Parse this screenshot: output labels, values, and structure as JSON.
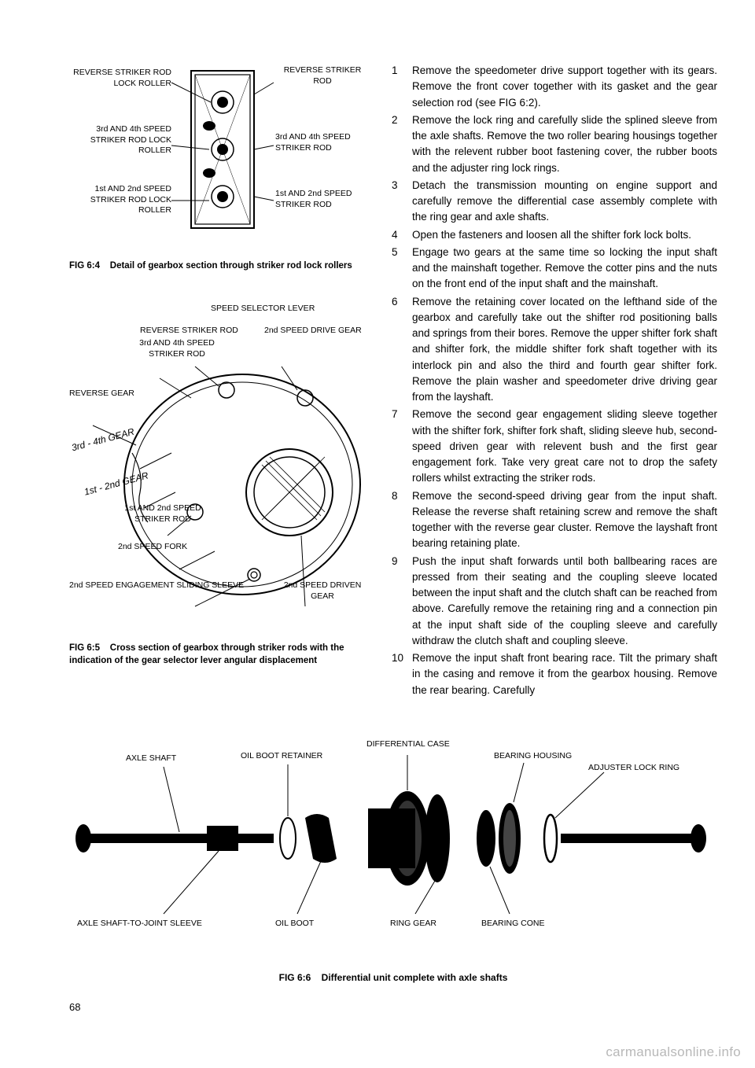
{
  "page_number": "68",
  "watermark": "carmanualsonline.info",
  "fig4": {
    "caption_num": "FIG 6:4",
    "caption_text": "Detail of gearbox section through striker rod lock rollers",
    "labels": {
      "l1": "REVERSE STRIKER ROD LOCK ROLLER",
      "l2": "3rd AND 4th SPEED STRIKER ROD LOCK ROLLER",
      "l3": "1st AND 2nd SPEED STRIKER ROD LOCK ROLLER",
      "r1": "REVERSE STRIKER ROD",
      "r2": "3rd AND 4th SPEED STRIKER ROD",
      "r3": "1st AND 2nd SPEED STRIKER ROD"
    }
  },
  "fig5": {
    "caption_num": "FIG 6:5",
    "caption_text": "Cross section of gearbox through striker rods with the indication of the gear selector lever angular displacement",
    "labels": {
      "top1": "SPEED SELECTOR LEVER",
      "top2": "REVERSE STRIKER ROD",
      "top3": "2nd SPEED DRIVE GEAR",
      "top4": "3rd AND 4th SPEED STRIKER ROD",
      "left1": "REVERSE GEAR",
      "gear34": "3rd - 4th GEAR",
      "gear12": "1st - 2nd GEAR",
      "mid1": "1st AND 2nd SPEED STRIKER ROD",
      "mid2": "2nd SPEED FORK",
      "bot1": "2nd SPEED ENGAGEMENT SLIDING SLEEVE",
      "bot2": "2nd SPEED DRIVEN GEAR"
    }
  },
  "fig6": {
    "caption_num": "FIG 6:6",
    "caption_text": "Differential unit complete with axle shafts",
    "labels": {
      "t1": "AXLE SHAFT",
      "t2": "OIL BOOT RETAINER",
      "t3": "DIFFERENTIAL CASE",
      "t4": "BEARING HOUSING",
      "t5": "ADJUSTER LOCK RING",
      "b1": "AXLE SHAFT-TO-JOINT SLEEVE",
      "b2": "OIL BOOT",
      "b3": "RING GEAR",
      "b4": "BEARING CONE"
    }
  },
  "steps": [
    {
      "num": "1",
      "text": "Remove the speedometer drive support together with its gears. Remove the front cover together with its gasket and the gear selection rod (see FIG 6:2)."
    },
    {
      "num": "2",
      "text": "Remove the lock ring and carefully slide the splined sleeve from the axle shafts. Remove the two roller bearing housings together with the relevent rubber boot fastening cover, the rubber boots and the adjuster ring lock rings."
    },
    {
      "num": "3",
      "text": "Detach the transmission mounting on engine support and carefully remove the differential case assembly complete with the ring gear and axle shafts."
    },
    {
      "num": "4",
      "text": "Open the fasteners and loosen all the shifter fork lock bolts."
    },
    {
      "num": "5",
      "text": "Engage two gears at the same time so locking the input shaft and the mainshaft together. Remove the cotter pins and the nuts on the front end of the input shaft and the mainshaft."
    },
    {
      "num": "6",
      "text": "Remove the retaining cover located on the lefthand side of the gearbox and carefully take out the shifter rod positioning balls and springs from their bores. Remove the upper shifter fork shaft and shifter fork, the middle shifter fork shaft together with its interlock pin and also the third and fourth gear shifter fork. Remove the plain washer and speedometer drive driving gear from the layshaft."
    },
    {
      "num": "7",
      "text": "Remove the second gear engagement sliding sleeve together with the shifter fork, shifter fork shaft, sliding sleeve hub, second-speed driven gear with relevent bush and the first gear engagement fork. Take very great care not to drop the safety rollers whilst extracting the striker rods."
    },
    {
      "num": "8",
      "text": "Remove the second-speed driving gear from the input shaft. Release the reverse shaft retaining screw and remove the shaft together with the reverse gear cluster. Remove the layshaft front bearing retaining plate."
    },
    {
      "num": "9",
      "text": "Push the input shaft forwards until both ballbearing races are pressed from their seating and the coupling sleeve located between the input shaft and the clutch shaft can be reached from above. Carefully remove the retaining ring and a connection pin at the input shaft side of the coupling sleeve and carefully withdraw the clutch shaft and coupling sleeve."
    },
    {
      "num": "10",
      "text": "Remove the input shaft front bearing race. Tilt the primary shaft in the casing and remove it from the gearbox housing. Remove the rear bearing. Carefully"
    }
  ]
}
